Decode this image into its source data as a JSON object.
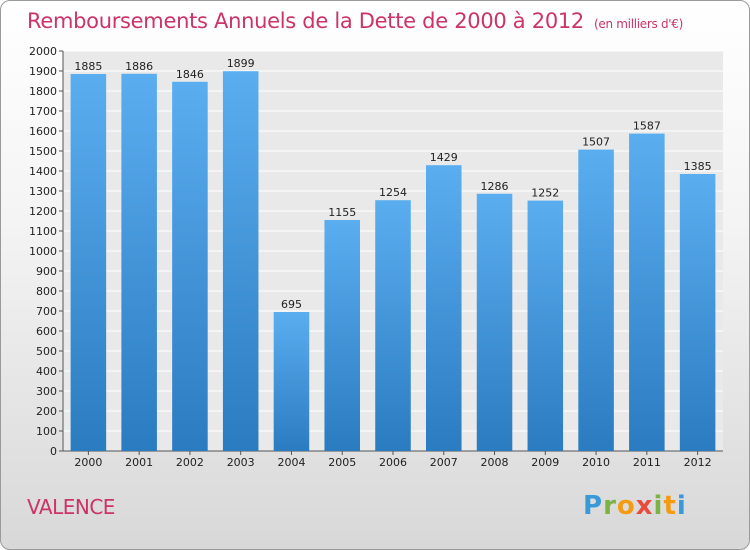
{
  "header": {
    "title": "Remboursements Annuels de la Dette de 2000 à 2012",
    "subtitle": "(en milliers d'€)"
  },
  "footer": {
    "city": "VALENCE",
    "logo": "Proxiti"
  },
  "colors": {
    "title": "#cc3366",
    "bar_light": "#5aaef0",
    "bar_dark": "#2b7bc0"
  },
  "chart_data": {
    "type": "bar",
    "title": "Remboursements Annuels de la Dette de 2000 à 2012",
    "categories": [
      "2000",
      "2001",
      "2002",
      "2003",
      "2004",
      "2005",
      "2006",
      "2007",
      "2008",
      "2009",
      "2010",
      "2011",
      "2012"
    ],
    "values": [
      1885,
      1886,
      1846,
      1899,
      695,
      1155,
      1254,
      1429,
      1286,
      1252,
      1507,
      1587,
      1385
    ],
    "ylim": [
      0,
      2000
    ],
    "ytick_step": 100,
    "grid": true,
    "legend": false
  }
}
